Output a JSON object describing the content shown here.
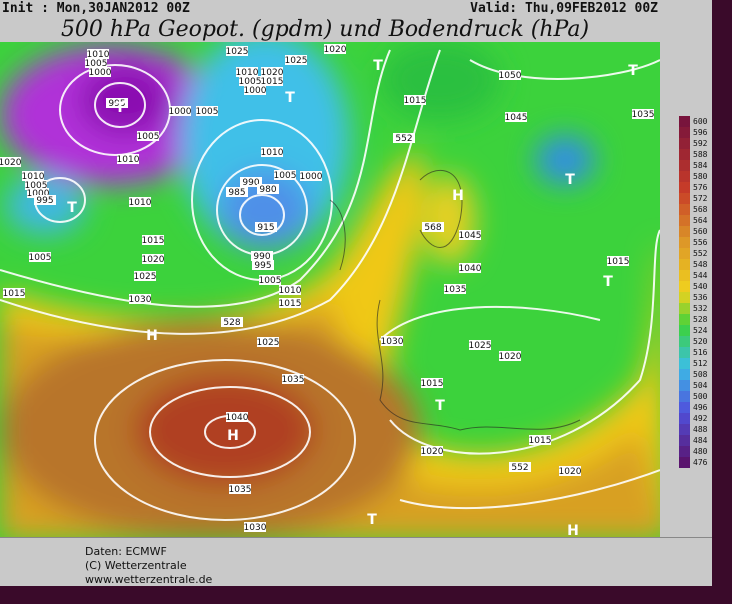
{
  "header": {
    "init": "Init : Mon,30JAN2012 00Z",
    "valid": "Valid: Thu,09FEB2012 00Z",
    "title": "500 hPa Geopot. (gpdm) und Bodendruck (hPa)"
  },
  "map": {
    "isobar_labels": [
      "1010",
      "1005",
      "1000",
      "995",
      "1005",
      "1000",
      "1005",
      "1010",
      "1020",
      "1010",
      "1005",
      "1000",
      "995",
      "1010",
      "1005",
      "1015",
      "1020",
      "1025",
      "1030",
      "1015",
      "1025",
      "1025",
      "1020",
      "1010",
      "1020",
      "1005",
      "1000",
      "1015",
      "1015",
      "1010",
      "1005",
      "1000",
      "990",
      "985",
      "980",
      "915",
      "990",
      "995",
      "1005",
      "1010",
      "1015",
      "1025",
      "1030",
      "1035",
      "1040",
      "1035",
      "1030",
      "1045",
      "1040",
      "1035",
      "1025",
      "1020",
      "1015",
      "1020",
      "1015",
      "1020",
      "1015",
      "1035",
      "1050",
      "1045",
      "552",
      "568",
      "528",
      "552"
    ],
    "pressure_centers": [
      "T",
      "T",
      "T",
      "T",
      "T",
      "T",
      "T",
      "T",
      "T",
      "H",
      "H",
      "H",
      "H"
    ]
  },
  "colorbar": {
    "ticks": [
      600,
      596,
      592,
      588,
      584,
      580,
      576,
      572,
      568,
      564,
      560,
      556,
      552,
      548,
      544,
      540,
      536,
      532,
      528,
      524,
      520,
      516,
      512,
      508,
      504,
      500,
      496,
      492,
      488,
      484,
      480,
      476
    ]
  },
  "footer": {
    "lines": [
      "Daten: ECMWF",
      "(C) Wetterzentrale",
      "www.wetterzentrale.de"
    ]
  }
}
